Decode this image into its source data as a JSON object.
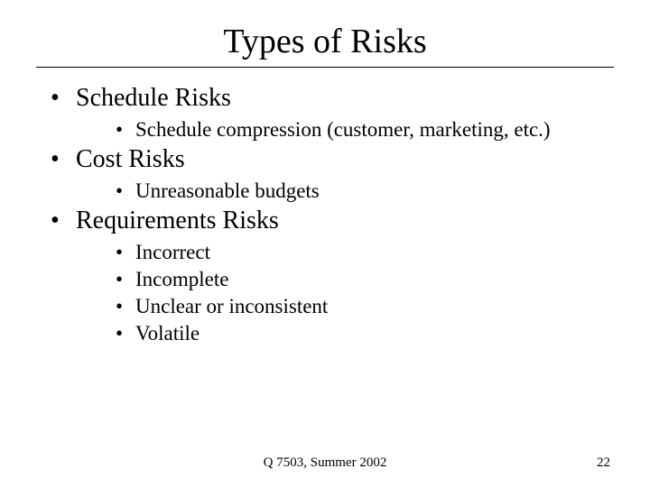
{
  "title": "Types of Risks",
  "content": {
    "items": [
      {
        "text": "Schedule Risks",
        "sub": [
          {
            "text": "Schedule compression (customer, marketing, etc.)"
          }
        ]
      },
      {
        "text": "Cost Risks",
        "sub": [
          {
            "text": "Unreasonable budgets"
          }
        ]
      },
      {
        "text": "Requirements Risks",
        "sub": [
          {
            "text": "Incorrect"
          },
          {
            "text": "Incomplete"
          },
          {
            "text": "Unclear or inconsistent"
          },
          {
            "text": "Volatile"
          }
        ]
      }
    ]
  },
  "footer": {
    "center": "Q 7503, Summer 2002",
    "page_number": "22"
  },
  "styling": {
    "background_color": "#ffffff",
    "text_color": "#000000",
    "font_family": "Times New Roman",
    "title_fontsize": 38,
    "l1_fontsize": 28,
    "l2_fontsize": 23,
    "footer_fontsize": 15,
    "bullet_marker": "•",
    "rule_color": "#000000"
  }
}
